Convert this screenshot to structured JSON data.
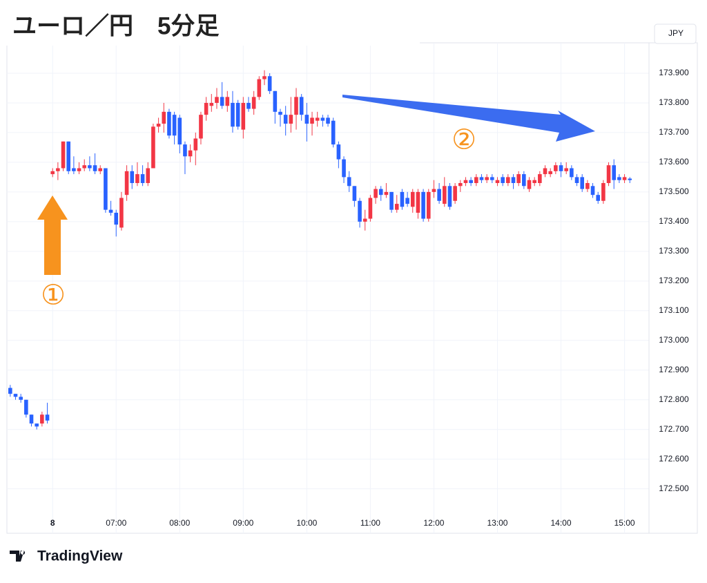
{
  "chart_data": {
    "type": "candlestick",
    "title": "ユーロ／円　5分足",
    "currency": "JPY",
    "brand": "TradingView",
    "annotations": [
      "①",
      "②"
    ],
    "up_color": "#f23645",
    "down_color": "#2962ff",
    "grid": true,
    "ylim": [
      172.355,
      174.0
    ],
    "yticks": [
      {
        "value": 172.5,
        "label": "172.500"
      },
      {
        "value": 172.6,
        "label": "172.600"
      },
      {
        "value": 172.7,
        "label": "172.700"
      },
      {
        "value": 172.8,
        "label": "172.800"
      },
      {
        "value": 172.9,
        "label": "172.900"
      },
      {
        "value": 173.0,
        "label": "173.000"
      },
      {
        "value": 173.1,
        "label": "173.100"
      },
      {
        "value": 173.2,
        "label": "173.200"
      },
      {
        "value": 173.3,
        "label": "173.300"
      },
      {
        "value": 173.4,
        "label": "173.400"
      },
      {
        "value": 173.5,
        "label": "173.500"
      },
      {
        "value": 173.6,
        "label": "173.600"
      },
      {
        "value": 173.7,
        "label": "173.700"
      },
      {
        "value": 173.8,
        "label": "173.800"
      },
      {
        "value": 173.9,
        "label": "173.900"
      }
    ],
    "categories": [
      null,
      null,
      null,
      null,
      null,
      null,
      null,
      null,
      "8",
      null,
      null,
      null,
      null,
      null,
      null,
      null,
      null,
      null,
      null,
      null,
      "07:00",
      null,
      null,
      null,
      null,
      null,
      null,
      null,
      null,
      null,
      null,
      null,
      "08:00",
      null,
      null,
      null,
      null,
      null,
      null,
      null,
      null,
      null,
      null,
      null,
      "09:00",
      null,
      null,
      null,
      null,
      null,
      null,
      null,
      null,
      null,
      null,
      null,
      "10:00",
      null,
      null,
      null,
      null,
      null,
      null,
      null,
      null,
      null,
      null,
      null,
      "11:00",
      null,
      null,
      null,
      null,
      null,
      null,
      null,
      null,
      null,
      null,
      null,
      "12:00",
      null,
      null,
      null,
      null,
      null,
      null,
      null,
      null,
      null,
      null,
      null,
      "13:00",
      null,
      null,
      null,
      null,
      null,
      null,
      null,
      null,
      null,
      null,
      null,
      "14:00",
      null,
      null,
      null,
      null,
      null,
      null,
      null,
      null,
      null,
      null,
      null,
      "15:00",
      null
    ],
    "open": [
      172.84,
      172.82,
      172.81,
      172.8,
      172.75,
      172.72,
      172.72,
      172.75,
      173.56,
      173.57,
      173.58,
      173.67,
      173.58,
      173.57,
      173.58,
      173.59,
      173.59,
      173.57,
      173.58,
      173.44,
      173.43,
      173.38,
      173.49,
      173.57,
      173.53,
      173.56,
      173.53,
      173.58,
      173.72,
      173.73,
      173.77,
      173.76,
      173.75,
      173.66,
      173.62,
      173.64,
      173.68,
      173.76,
      173.79,
      173.8,
      173.82,
      173.79,
      173.8,
      173.8,
      173.71,
      173.8,
      173.78,
      173.82,
      173.88,
      173.89,
      173.84,
      173.77,
      173.76,
      173.73,
      173.76,
      173.82,
      173.76,
      173.73,
      173.74,
      173.75,
      173.75,
      173.74,
      173.66,
      173.61,
      173.55,
      173.52,
      173.47,
      173.4,
      173.41,
      173.48,
      173.51,
      173.49,
      173.5,
      173.44,
      173.5,
      173.48,
      173.45,
      173.43,
      173.5,
      173.41,
      173.5,
      173.51,
      173.46,
      173.52,
      173.47,
      173.52,
      173.53,
      173.54,
      173.53,
      173.55,
      173.54,
      173.55,
      173.53,
      173.55,
      173.53,
      173.55,
      173.53,
      173.56,
      173.51,
      173.53,
      173.53,
      173.56,
      173.56,
      173.57,
      173.59,
      173.57,
      173.58,
      173.55,
      173.55,
      173.51,
      173.52,
      173.49,
      173.47,
      173.53,
      173.59,
      173.55,
      173.54,
      173.545
    ],
    "high": [
      172.85,
      172.82,
      172.82,
      172.8,
      172.75,
      172.72,
      172.76,
      172.79,
      173.58,
      173.6,
      173.67,
      173.67,
      173.62,
      173.6,
      173.61,
      173.62,
      173.63,
      173.59,
      173.58,
      173.47,
      173.44,
      173.5,
      173.59,
      173.59,
      173.6,
      173.59,
      173.6,
      173.73,
      173.75,
      173.8,
      173.78,
      173.77,
      173.76,
      173.67,
      173.66,
      173.7,
      173.77,
      173.82,
      173.83,
      173.85,
      173.87,
      173.84,
      173.84,
      173.81,
      173.82,
      173.82,
      173.84,
      173.89,
      173.91,
      173.9,
      173.84,
      173.78,
      173.79,
      173.82,
      173.85,
      173.83,
      173.8,
      173.77,
      173.77,
      173.76,
      173.76,
      173.75,
      173.67,
      173.62,
      173.57,
      173.52,
      173.48,
      173.44,
      173.49,
      173.52,
      173.52,
      173.53,
      173.5,
      173.49,
      173.51,
      173.5,
      173.51,
      173.51,
      173.51,
      173.51,
      173.54,
      173.53,
      173.55,
      173.53,
      173.53,
      173.54,
      173.55,
      173.55,
      173.56,
      173.56,
      173.56,
      173.56,
      173.55,
      173.56,
      173.56,
      173.56,
      173.57,
      173.57,
      173.55,
      173.55,
      173.57,
      173.59,
      173.58,
      173.6,
      173.6,
      173.6,
      173.59,
      173.56,
      173.56,
      173.54,
      173.53,
      173.5,
      173.54,
      173.6,
      173.61,
      173.56,
      173.56,
      173.55
    ],
    "low": [
      172.81,
      172.8,
      172.79,
      172.74,
      172.71,
      172.7,
      172.71,
      172.72,
      173.55,
      173.54,
      173.57,
      173.56,
      173.56,
      173.56,
      173.57,
      173.57,
      173.56,
      173.56,
      173.43,
      173.42,
      173.35,
      173.37,
      173.47,
      173.51,
      173.52,
      173.52,
      173.52,
      173.58,
      173.7,
      173.7,
      173.68,
      173.66,
      173.63,
      173.56,
      173.6,
      173.59,
      173.66,
      173.74,
      173.77,
      173.78,
      173.78,
      173.77,
      173.7,
      173.71,
      173.68,
      173.77,
      173.76,
      173.81,
      173.86,
      173.83,
      173.73,
      173.72,
      173.69,
      173.7,
      173.71,
      173.74,
      173.67,
      173.69,
      173.72,
      173.72,
      173.72,
      173.65,
      173.58,
      173.53,
      173.5,
      173.45,
      173.38,
      173.37,
      173.4,
      173.46,
      173.47,
      173.48,
      173.43,
      173.43,
      173.44,
      173.45,
      173.43,
      173.41,
      173.4,
      173.4,
      173.48,
      173.46,
      173.45,
      173.44,
      173.46,
      173.5,
      173.52,
      173.52,
      173.52,
      173.53,
      173.53,
      173.53,
      173.52,
      173.52,
      173.52,
      173.51,
      173.52,
      173.51,
      173.5,
      173.52,
      173.52,
      173.55,
      173.55,
      173.56,
      173.55,
      173.56,
      173.54,
      173.52,
      173.5,
      173.5,
      173.48,
      173.46,
      173.46,
      173.52,
      173.51,
      173.53,
      173.53,
      173.53
    ],
    "close": [
      172.82,
      172.81,
      172.8,
      172.75,
      172.72,
      172.71,
      172.75,
      172.73,
      173.57,
      173.58,
      173.67,
      173.57,
      173.57,
      173.58,
      173.59,
      173.58,
      173.57,
      173.58,
      173.44,
      173.43,
      173.39,
      173.48,
      173.57,
      173.53,
      173.56,
      173.53,
      173.58,
      173.72,
      173.73,
      173.77,
      173.69,
      173.69,
      173.66,
      173.62,
      173.64,
      173.68,
      173.76,
      173.8,
      173.8,
      173.82,
      173.79,
      173.82,
      173.72,
      173.72,
      173.8,
      173.78,
      173.82,
      173.88,
      173.89,
      173.84,
      173.77,
      173.76,
      173.73,
      173.76,
      173.82,
      173.76,
      173.73,
      173.75,
      173.75,
      173.74,
      173.73,
      173.66,
      173.61,
      173.55,
      173.52,
      173.47,
      173.4,
      173.41,
      173.48,
      173.51,
      173.49,
      173.5,
      173.44,
      173.46,
      173.45,
      173.46,
      173.5,
      173.5,
      173.41,
      173.5,
      173.51,
      173.47,
      173.52,
      173.45,
      173.52,
      173.53,
      173.54,
      173.53,
      173.55,
      173.54,
      173.55,
      173.54,
      173.54,
      173.53,
      173.55,
      173.53,
      173.56,
      173.52,
      173.54,
      173.54,
      173.56,
      173.58,
      173.57,
      173.59,
      173.57,
      173.58,
      173.55,
      173.53,
      173.51,
      173.53,
      173.49,
      173.47,
      173.53,
      173.59,
      173.54,
      173.54,
      173.55,
      173.54
    ]
  }
}
